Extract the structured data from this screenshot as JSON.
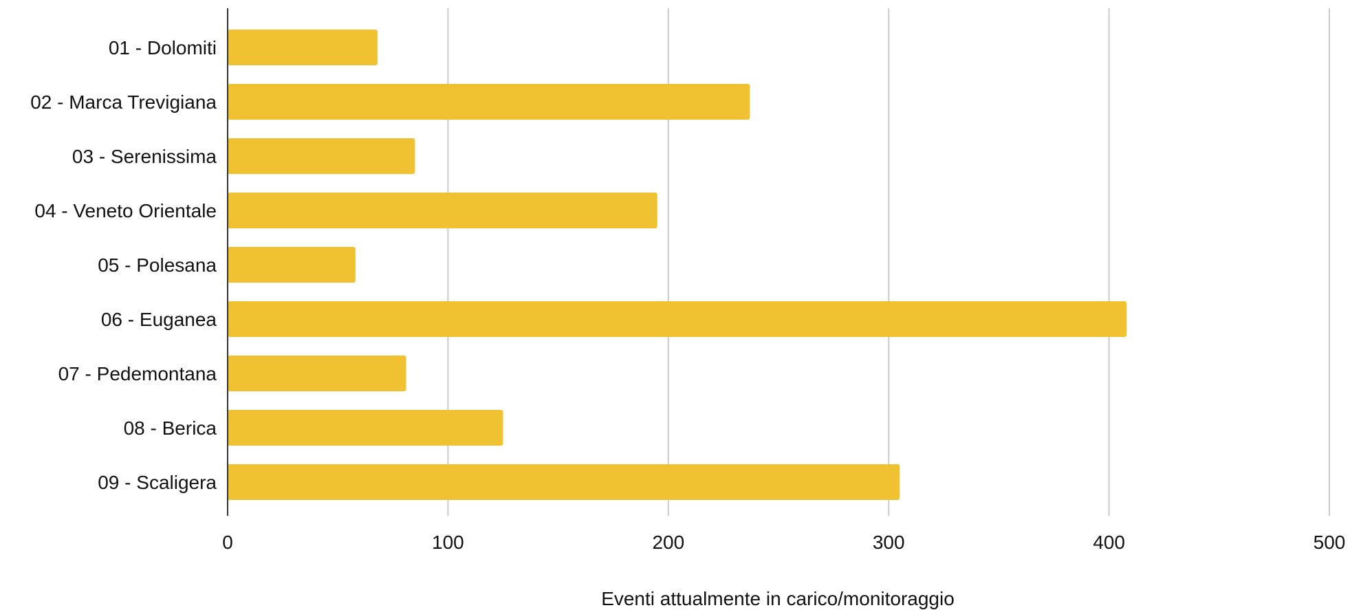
{
  "chart_data": {
    "type": "bar",
    "orientation": "horizontal",
    "categories": [
      "01 - Dolomiti",
      "02 - Marca Trevigiana",
      "03 - Serenissima",
      "04 - Veneto Orientale",
      "05 - Polesana",
      "06 - Euganea",
      "07 - Pedemontana",
      "08 - Berica",
      "09 - Scaligera"
    ],
    "values": [
      68,
      237,
      85,
      195,
      58,
      408,
      81,
      125,
      305
    ],
    "xlabel": "Eventi attualmente in carico/monitoraggio",
    "ylabel": "",
    "xlim": [
      0,
      500
    ],
    "xticks": [
      0,
      100,
      200,
      300,
      400,
      500
    ],
    "xtick_labels": [
      "0",
      "100",
      "200",
      "300",
      "400",
      "500"
    ],
    "grid": "vertical",
    "legend": "none",
    "bar_color": "#F0C232",
    "grid_color": "#CCCCCC",
    "axis_color": "#333333"
  }
}
